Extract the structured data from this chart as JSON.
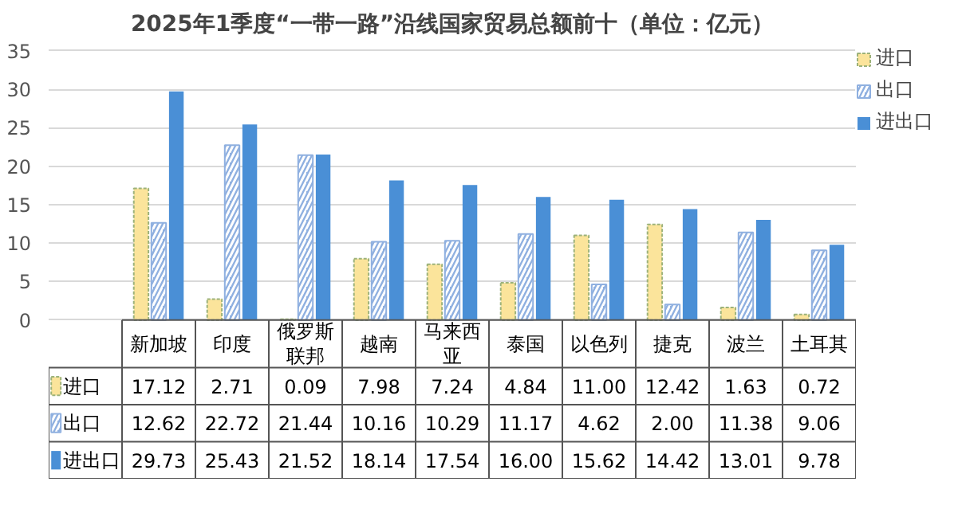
{
  "chart_data": {
    "type": "bar",
    "title": "2025年1季度“一带一路”沿线国家贸易总额前十（单位：亿元）",
    "categories": [
      "新加坡",
      "印度",
      "俄罗斯联邦",
      "越南",
      "马来西亚",
      "泰国",
      "以色列",
      "捷克",
      "波兰",
      "土耳其"
    ],
    "series": [
      {
        "name": "进口",
        "color": "#fbe49b",
        "values": [
          17.12,
          2.71,
          0.09,
          7.98,
          7.24,
          4.84,
          11.0,
          12.42,
          1.63,
          0.72
        ],
        "value_labels": [
          "17.12",
          "2.71",
          "0.09",
          "7.98",
          "7.24",
          "4.84",
          "11.00",
          "12.42",
          "1.63",
          "0.72"
        ]
      },
      {
        "name": "出口",
        "color": "#8fb0e0",
        "values": [
          12.62,
          22.72,
          21.44,
          10.16,
          10.29,
          11.17,
          4.62,
          2.0,
          11.38,
          9.06
        ],
        "value_labels": [
          "12.62",
          "22.72",
          "21.44",
          "10.16",
          "10.29",
          "11.17",
          "4.62",
          "2.00",
          "11.38",
          "9.06"
        ]
      },
      {
        "name": "进出口",
        "color": "#4a8fd6",
        "values": [
          29.73,
          25.43,
          21.52,
          18.14,
          17.54,
          16.0,
          15.62,
          14.42,
          13.01,
          9.78
        ],
        "value_labels": [
          "29.73",
          "25.43",
          "21.52",
          "18.14",
          "17.54",
          "16.00",
          "15.62",
          "14.42",
          "13.01",
          "9.78"
        ]
      }
    ],
    "ylim": [
      0,
      35
    ],
    "yticks": [
      0,
      5,
      10,
      15,
      20,
      25,
      30,
      35
    ],
    "grid": "y",
    "legend": "right"
  }
}
